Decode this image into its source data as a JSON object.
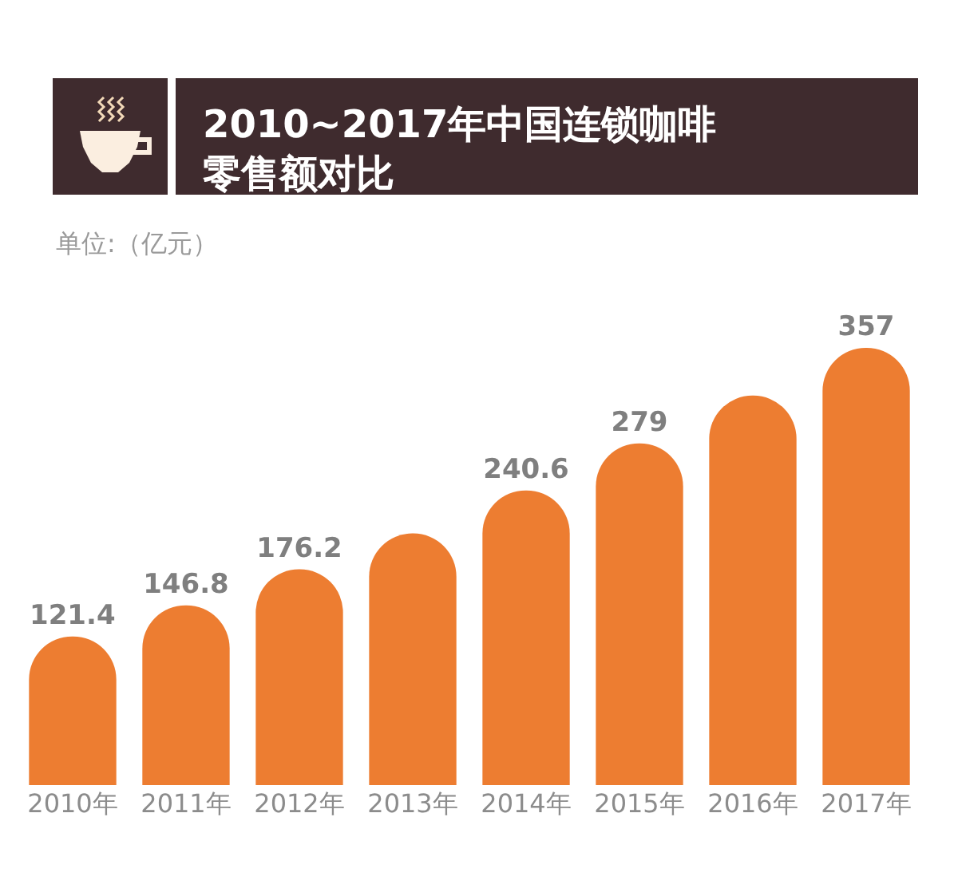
{
  "chart_data": {
    "type": "bar",
    "title": "2010~2017年中国连锁咖啡零售额对比",
    "subtitle": "单位:（亿元）",
    "categories": [
      "2010年",
      "2011年",
      "2012年",
      "2013年",
      "2014年",
      "2015年",
      "2016年",
      "2017年"
    ],
    "values": [
      121.4,
      146.8,
      176.2,
      205.5,
      240.6,
      279,
      318,
      357
    ],
    "value_labels": [
      "121.4",
      "146.8",
      "176.2",
      null,
      "240.6",
      "279",
      null,
      "357"
    ],
    "color": "#ed7d31"
  }
}
